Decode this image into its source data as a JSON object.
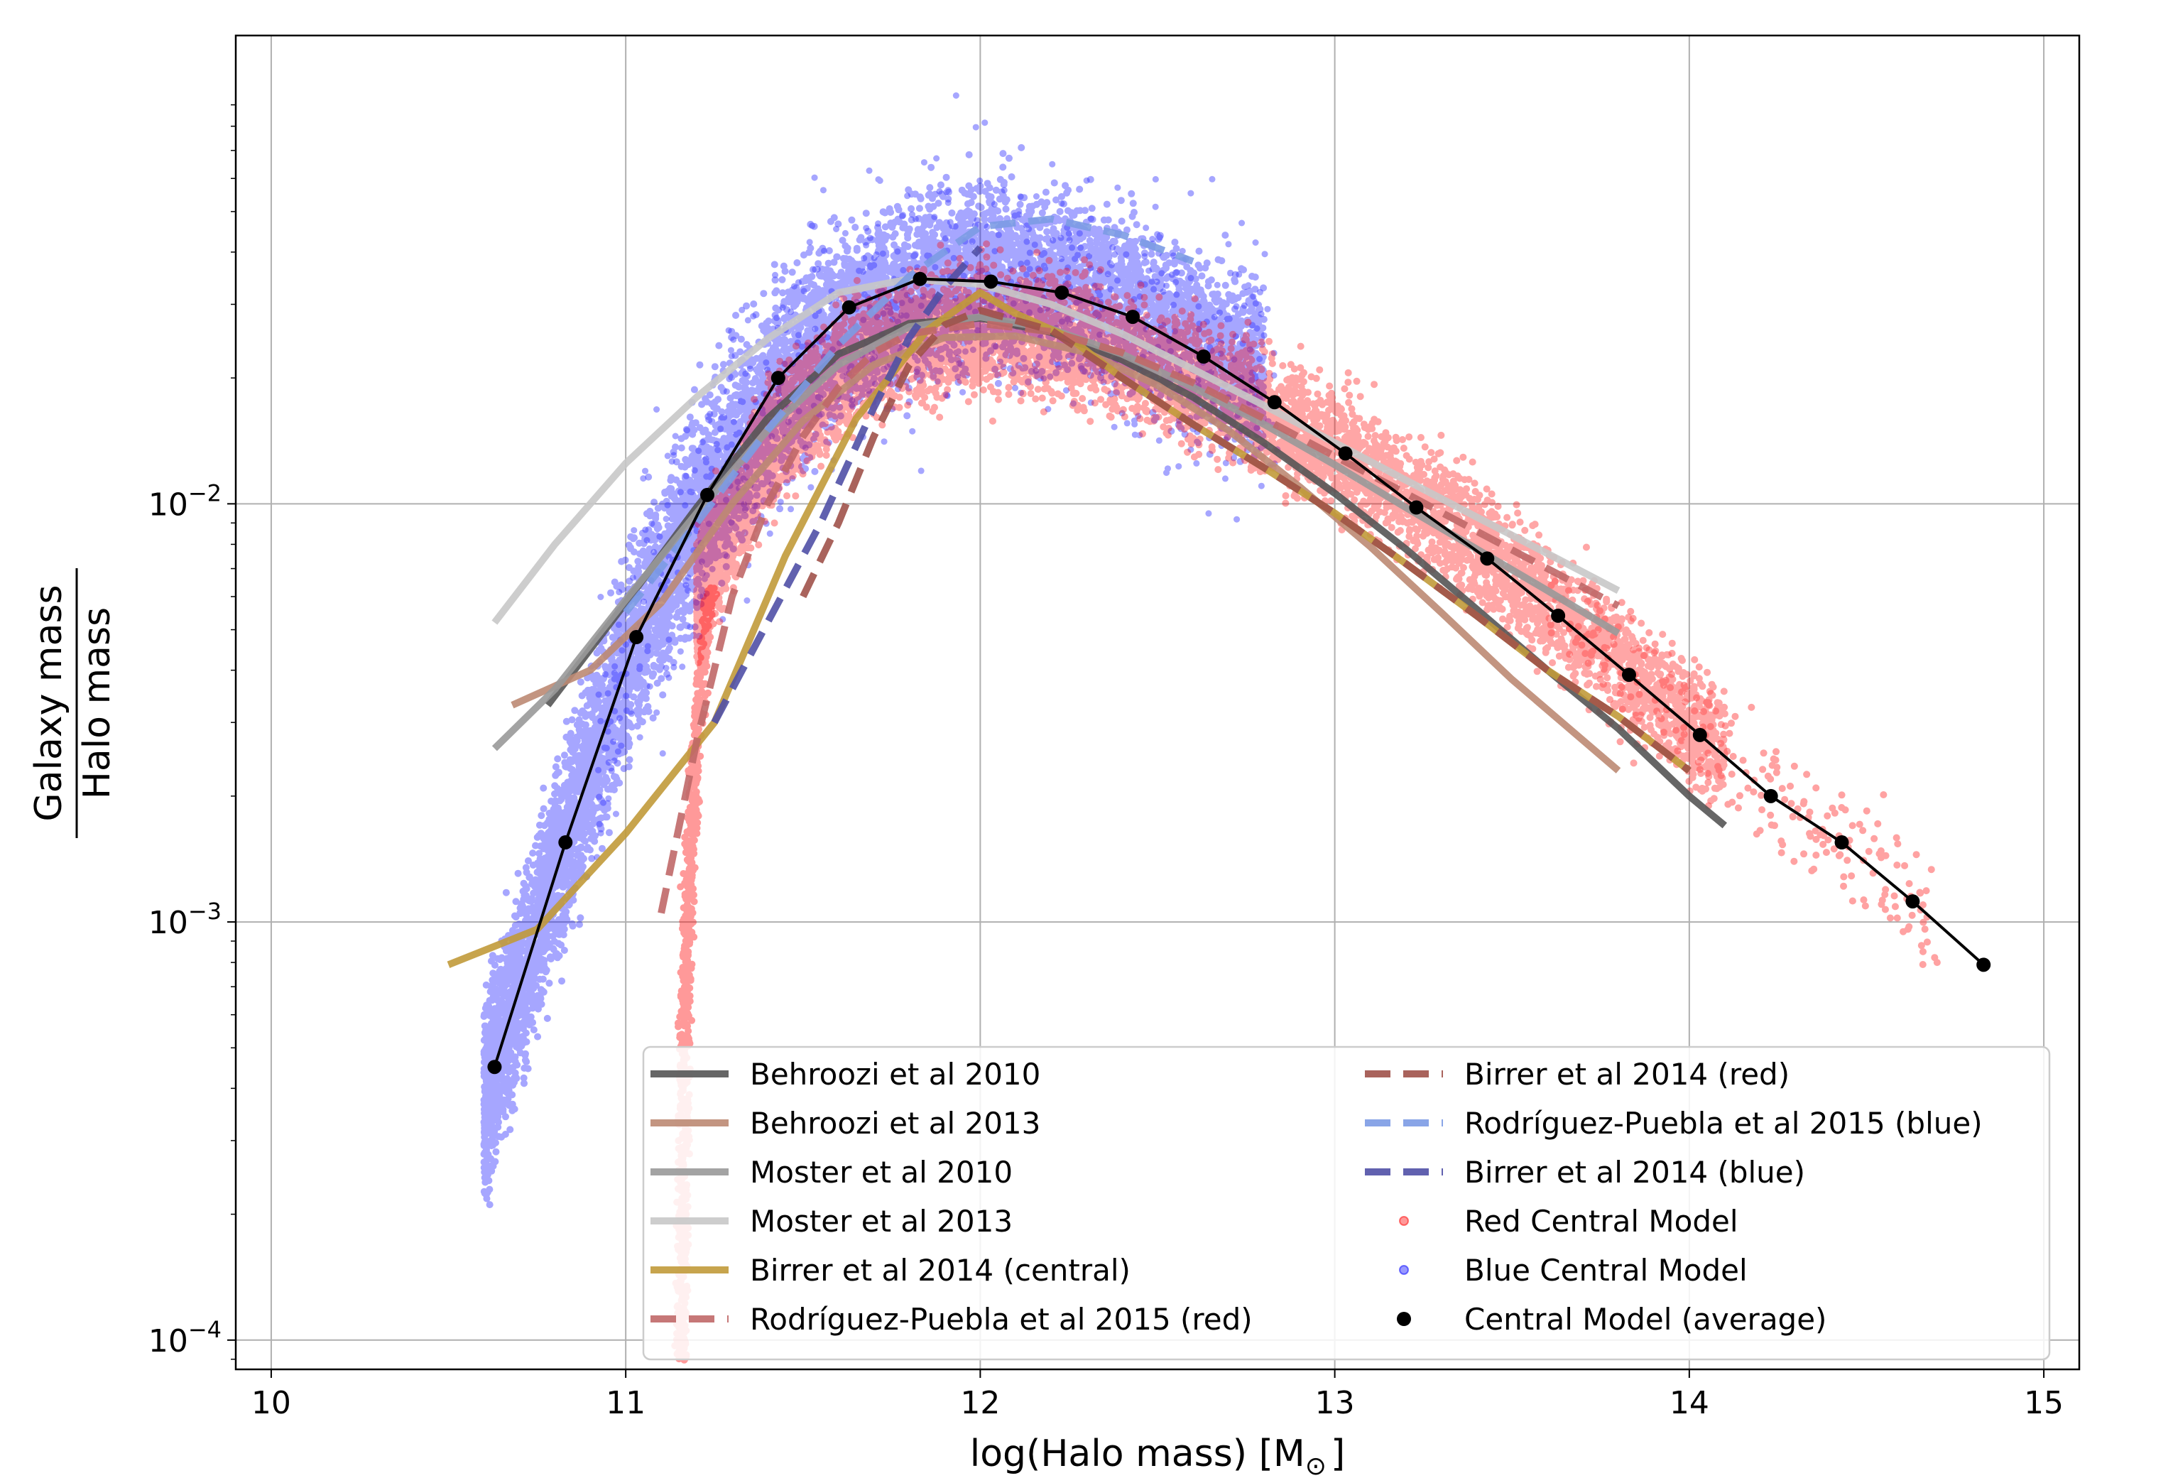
{
  "chart_data": {
    "type": "scatter",
    "title": "",
    "xlabel": "log(Halo mass) [M",
    "xlabel_subscript": "⊙",
    "xlabel_close": "]",
    "ylabel_numerator": "Galaxy mass",
    "ylabel_denominator": "Halo mass",
    "xlim": [
      9.9,
      15.1
    ],
    "ylim_log10": [
      -4.07,
      -0.88
    ],
    "yscale": "log",
    "grid": true,
    "x_ticks": [
      10,
      11,
      12,
      13,
      14,
      15
    ],
    "x_tick_labels": [
      "10",
      "11",
      "12",
      "13",
      "14",
      "15"
    ],
    "y_ticks_log10": [
      -4,
      -3,
      -2
    ],
    "y_tick_labels": [
      {
        "base": "10",
        "exp": "−4"
      },
      {
        "base": "10",
        "exp": "−3"
      },
      {
        "base": "10",
        "exp": "−2"
      }
    ],
    "legend_position": "lower right",
    "series": [
      {
        "name": "Behroozi et al 2010",
        "style": "solid",
        "color": "#555555",
        "x": [
          10.78,
          11.0,
          11.2,
          11.4,
          11.6,
          11.8,
          12.0,
          12.2,
          12.4,
          12.6,
          12.8,
          13.0,
          13.2,
          13.4,
          13.6,
          13.8,
          14.0,
          14.1
        ],
        "y": [
          0.0033,
          0.0058,
          0.0098,
          0.016,
          0.0228,
          0.027,
          0.0278,
          0.0257,
          0.0221,
          0.018,
          0.014,
          0.0106,
          0.0078,
          0.0056,
          0.004,
          0.0029,
          0.002,
          0.0017
        ]
      },
      {
        "name": "Behroozi et al 2013",
        "style": "solid",
        "color": "#BC8A73",
        "x": [
          10.68,
          10.9,
          11.1,
          11.3,
          11.5,
          11.7,
          11.9,
          12.1,
          12.3,
          12.5,
          12.7,
          12.9,
          13.1,
          13.3,
          13.5,
          13.8
        ],
        "y": [
          0.0033,
          0.004,
          0.0058,
          0.01,
          0.0158,
          0.0215,
          0.025,
          0.0252,
          0.023,
          0.0192,
          0.015,
          0.011,
          0.0079,
          0.0055,
          0.0038,
          0.0023
        ]
      },
      {
        "name": "Moster et al 2010",
        "style": "solid",
        "color": "#999999",
        "x": [
          10.63,
          10.8,
          11.0,
          11.2,
          11.4,
          11.6,
          11.8,
          12.0,
          12.2,
          12.4,
          12.6,
          12.8,
          13.0,
          13.2,
          13.4,
          13.6,
          13.8
        ],
        "y": [
          0.0026,
          0.0036,
          0.0059,
          0.0095,
          0.015,
          0.0215,
          0.0265,
          0.028,
          0.0262,
          0.0228,
          0.019,
          0.0155,
          0.0124,
          0.0098,
          0.0078,
          0.0062,
          0.0049
        ]
      },
      {
        "name": "Moster et al 2013",
        "style": "solid",
        "color": "#C8C8C8",
        "x": [
          10.63,
          10.8,
          11.0,
          11.2,
          11.4,
          11.6,
          11.8,
          12.0,
          12.2,
          12.4,
          12.6,
          12.8,
          13.0,
          13.2,
          13.4,
          13.6,
          13.8
        ],
        "y": [
          0.0052,
          0.008,
          0.0125,
          0.018,
          0.0248,
          0.032,
          0.0345,
          0.0335,
          0.03,
          0.0255,
          0.021,
          0.0172,
          0.014,
          0.0114,
          0.0093,
          0.0076,
          0.0062
        ]
      },
      {
        "name": "Birrer et al 2014 (central)",
        "style": "solid",
        "color": "#C19A3A",
        "x": [
          10.5,
          10.75,
          11.0,
          11.25,
          11.45,
          11.65,
          11.85,
          12.0,
          12.1,
          12.25,
          12.4,
          12.6,
          12.8,
          13.0,
          13.2,
          13.4,
          13.6,
          13.8,
          14.0
        ],
        "y": [
          0.00079,
          0.00096,
          0.00163,
          0.003,
          0.0075,
          0.016,
          0.026,
          0.032,
          0.0285,
          0.025,
          0.02,
          0.0155,
          0.0122,
          0.0095,
          0.0072,
          0.0054,
          0.004,
          0.0031,
          0.0023
        ]
      },
      {
        "name": "Rodríguez-Puebla et al 2015 (red)",
        "style": "dashed",
        "color": "#C06868",
        "x": [
          11.1,
          11.2,
          11.3,
          11.4,
          11.5,
          11.6,
          11.7,
          11.8,
          12.0,
          12.2,
          12.4,
          12.6,
          12.8,
          13.0,
          13.2,
          13.4,
          13.6,
          13.8
        ],
        "y": [
          0.00105,
          0.0027,
          0.006,
          0.01,
          0.0145,
          0.019,
          0.023,
          0.0255,
          0.027,
          0.0258,
          0.023,
          0.0195,
          0.016,
          0.013,
          0.0106,
          0.0086,
          0.007,
          0.0057
        ]
      },
      {
        "name": "Birrer et al 2014 (red)",
        "style": "dashed",
        "color": "#A0524A",
        "x": [
          11.5,
          11.6,
          11.7,
          11.8,
          11.9,
          12.0,
          12.2,
          12.4,
          12.6,
          12.8,
          13.0,
          13.2,
          13.4,
          13.6,
          13.8,
          14.0
        ],
        "y": [
          0.006,
          0.009,
          0.0145,
          0.0215,
          0.0268,
          0.029,
          0.026,
          0.02,
          0.0155,
          0.0122,
          0.0095,
          0.0072,
          0.0054,
          0.004,
          0.0031,
          0.0023
        ]
      },
      {
        "name": "Rodríguez-Puebla et al 2015 (blue)",
        "style": "dashed",
        "color": "#7C9BE4",
        "x": [
          11.0,
          11.2,
          11.4,
          11.6,
          11.8,
          12.0,
          12.2,
          12.4,
          12.6
        ],
        "y": [
          0.0055,
          0.009,
          0.015,
          0.024,
          0.035,
          0.046,
          0.048,
          0.044,
          0.038
        ]
      },
      {
        "name": "Birrer et al 2014 (blue)",
        "style": "dashed",
        "color": "#5050A6",
        "x": [
          11.25,
          11.4,
          11.55,
          11.7,
          11.8,
          11.9,
          12.0
        ],
        "y": [
          0.003,
          0.0052,
          0.009,
          0.017,
          0.025,
          0.033,
          0.041
        ]
      },
      {
        "name": "Red Central Model",
        "style": "scatter",
        "color": "#FF0000",
        "x_range": [
          11.15,
          14.7
        ],
        "note": "dense cloud; lower envelope drops steeply near log M = 11.15–11.2"
      },
      {
        "name": "Blue Central Model",
        "style": "scatter",
        "color": "#0000FF",
        "x_range": [
          10.58,
          12.8
        ],
        "note": "dense cloud; bottom near 2.5e-4 at 10.6, peaking ~0.05 near 12.1"
      },
      {
        "name": "Central Model (average)",
        "style": "line-markers",
        "color": "#000000",
        "x": [
          10.63,
          10.83,
          11.03,
          11.23,
          11.43,
          11.63,
          11.83,
          12.03,
          12.23,
          12.43,
          12.63,
          12.83,
          13.03,
          13.23,
          13.43,
          13.63,
          13.83,
          14.03,
          14.23,
          14.43,
          14.63,
          14.83
        ],
        "y": [
          0.00045,
          0.00155,
          0.0048,
          0.0105,
          0.02,
          0.0295,
          0.0345,
          0.034,
          0.032,
          0.028,
          0.0225,
          0.0175,
          0.0132,
          0.0098,
          0.0074,
          0.0054,
          0.0039,
          0.0028,
          0.002,
          0.00155,
          0.00112,
          0.00079
        ]
      }
    ]
  }
}
